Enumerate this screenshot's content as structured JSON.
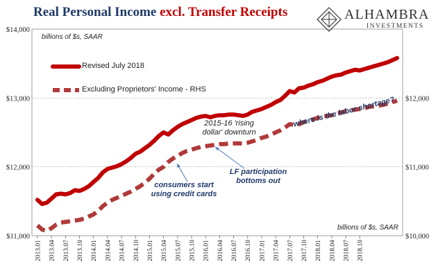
{
  "header": {
    "title_part1": "Real Personal Income ",
    "title_part2": "excl. Transfer Receipts",
    "logo_name": "ALHAMBRA",
    "logo_sub": "INVESTMENTS",
    "logo_icon": "diamond-lattice-icon"
  },
  "colors": {
    "title_main": "#1f3a68",
    "title_accent": "#c00000",
    "series1": "#c00000",
    "series2": "#b03a3a",
    "annotation": "#1f3a68"
  },
  "annotations": {
    "left_unit": "billions of $s, SAAR",
    "right_unit": "billions of $s, SAAR",
    "rising_dollar_line1": "2015-16 'rising",
    "rising_dollar_line2": "dollar' downturn",
    "consumers_line1": "consumers start",
    "consumers_line2": "using credit cards",
    "lf_line1": "LF participation",
    "lf_line2": "bottoms out",
    "labor_shortage": "where is the labor shortage?"
  },
  "chart_data": {
    "type": "line",
    "title": "Real Personal Income excl. Transfer Receipts",
    "ylabel": "billions of $s, SAAR",
    "y2label": "billions of $s, SAAR",
    "ylim": [
      11000,
      14000
    ],
    "y2lim": [
      10000,
      13000
    ],
    "y_ticks": [
      "$11,000",
      "$12,000",
      "$13,000",
      "$14,000"
    ],
    "y2_ticks": [
      "$10,000",
      "$11,000",
      "$12,000"
    ],
    "grid": true,
    "legend_position": "top-left",
    "x_ticks": [
      "2013.01",
      "2013.04",
      "2013.07",
      "2013.10",
      "2014.01",
      "2014.04",
      "2014.07",
      "2014.10",
      "2015.01",
      "2015.04",
      "2015.07",
      "2015.10",
      "2016.01",
      "2016.04",
      "2016.07",
      "2016.10",
      "2017.01",
      "2017.04",
      "2017.07",
      "2017.10",
      "2018.01",
      "2018.04",
      "2018.07",
      "2018.10"
    ],
    "series": [
      {
        "name": "Revised July 2018",
        "axis": "left",
        "style": "solid",
        "values": [
          11520,
          11460,
          11480,
          11540,
          11600,
          11610,
          11600,
          11620,
          11660,
          11650,
          11680,
          11720,
          11780,
          11840,
          11920,
          11970,
          11990,
          12010,
          12040,
          12080,
          12130,
          12190,
          12220,
          12270,
          12320,
          12380,
          12450,
          12500,
          12470,
          12530,
          12580,
          12620,
          12650,
          12680,
          12710,
          12730,
          12740,
          12720,
          12740,
          12750,
          12750,
          12760,
          12760,
          12750,
          12740,
          12760,
          12800,
          12820,
          12840,
          12870,
          12900,
          12940,
          12970,
          13030,
          13100,
          13080,
          13140,
          13150,
          13180,
          13200,
          13230,
          13250,
          13280,
          13310,
          13330,
          13340,
          13370,
          13390,
          13410,
          13400,
          13420,
          13440,
          13460,
          13480,
          13500,
          13520,
          13550,
          13580
        ]
      },
      {
        "name": "Excluding Proprietors' Income - RHS",
        "axis": "right",
        "style": "dashed",
        "values": [
          10150,
          10090,
          10070,
          10110,
          10160,
          10190,
          10200,
          10210,
          10220,
          10230,
          10250,
          10280,
          10310,
          10360,
          10430,
          10480,
          10520,
          10550,
          10580,
          10610,
          10640,
          10680,
          10720,
          10770,
          10830,
          10900,
          10960,
          11000,
          11070,
          11120,
          11160,
          11200,
          11230,
          11250,
          11270,
          11290,
          11300,
          11310,
          11320,
          11330,
          11330,
          11340,
          11340,
          11340,
          11340,
          11350,
          11370,
          11390,
          11420,
          11440,
          11470,
          11500,
          11530,
          11570,
          11620,
          11610,
          11620,
          11650,
          11670,
          11690,
          11710,
          11730,
          11740,
          11750,
          11770,
          11790,
          11810,
          11820,
          11830,
          11840,
          11850,
          11870,
          11880,
          11890,
          11900,
          11920,
          11940,
          11960
        ]
      }
    ]
  }
}
